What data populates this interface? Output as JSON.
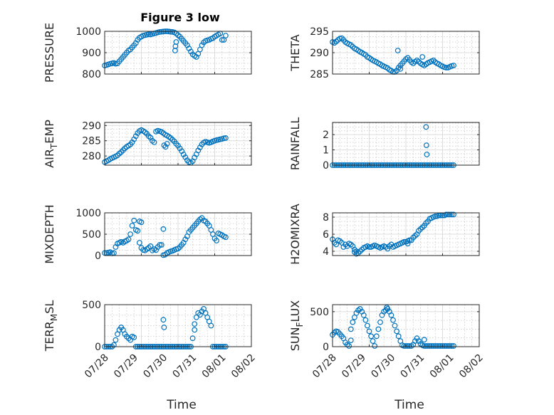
{
  "figure": {
    "title": "Figure 3 low",
    "xlabel": "Time"
  },
  "colors": {
    "marker": "#0072bd",
    "axis": "#262626",
    "grid": "#dcdcdc",
    "background": "#ffffff"
  },
  "chart_data": [
    {
      "type": "scatter",
      "ylabel": "PRESSURE",
      "xlim": [
        0,
        4
      ],
      "ylim": [
        800,
        1000
      ],
      "yticks": [
        "800",
        "900",
        "1000"
      ],
      "xticks": [],
      "grid": "on",
      "x": [
        0.0,
        0.05,
        0.1,
        0.15,
        0.2,
        0.25,
        0.3,
        0.35,
        0.4,
        0.45,
        0.5,
        0.55,
        0.6,
        0.65,
        0.7,
        0.75,
        0.8,
        0.85,
        0.9,
        0.95,
        1.0,
        1.05,
        1.1,
        1.15,
        1.2,
        1.25,
        1.3,
        1.35,
        1.4,
        1.45,
        1.5,
        1.55,
        1.6,
        1.65,
        1.7,
        1.75,
        1.8,
        1.85,
        1.9,
        1.95,
        2.0,
        2.05,
        2.1,
        2.15,
        2.2,
        2.25,
        2.3,
        2.35,
        2.4,
        2.45,
        2.5,
        2.55,
        2.6,
        2.65,
        2.7,
        2.75,
        2.8,
        2.85,
        2.9,
        2.95,
        3.0,
        3.05,
        3.1,
        3.15,
        3.2,
        3.25,
        3.3,
        1.92,
        1.93,
        1.95
      ],
      "y": [
        840,
        842,
        845,
        848,
        850,
        852,
        848,
        850,
        860,
        870,
        880,
        890,
        900,
        910,
        915,
        925,
        935,
        945,
        960,
        970,
        975,
        980,
        982,
        984,
        986,
        985,
        988,
        990,
        992,
        995,
        997,
        998,
        999,
        1000,
        1000,
        999,
        998,
        997,
        995,
        990,
        982,
        975,
        965,
        955,
        945,
        935,
        920,
        905,
        892,
        885,
        880,
        895,
        915,
        935,
        948,
        955,
        958,
        960,
        965,
        968,
        975,
        980,
        985,
        990,
        960,
        960,
        980,
        910,
        930,
        950
      ]
    },
    {
      "type": "scatter",
      "ylabel": "THETA",
      "xlim": [
        0,
        4
      ],
      "ylim": [
        285,
        295
      ],
      "yticks": [
        "285",
        "290",
        "295"
      ],
      "xticks": [],
      "grid": "on",
      "x": [
        0.0,
        0.05,
        0.1,
        0.15,
        0.2,
        0.25,
        0.3,
        0.35,
        0.4,
        0.45,
        0.5,
        0.55,
        0.6,
        0.65,
        0.7,
        0.75,
        0.8,
        0.85,
        0.9,
        0.95,
        1.0,
        1.05,
        1.1,
        1.15,
        1.2,
        1.25,
        1.3,
        1.35,
        1.4,
        1.45,
        1.5,
        1.55,
        1.6,
        1.65,
        1.7,
        1.75,
        1.8,
        1.85,
        1.9,
        1.95,
        2.0,
        2.05,
        2.1,
        2.15,
        2.2,
        2.25,
        2.3,
        2.35,
        2.4,
        2.45,
        2.5,
        2.55,
        2.6,
        2.65,
        2.7,
        2.75,
        2.8,
        2.85,
        2.9,
        2.95,
        3.0,
        3.05,
        3.1,
        3.15,
        3.2,
        3.25,
        3.3,
        1.78,
        1.85,
        2.45
      ],
      "y": [
        292.5,
        292.3,
        292.6,
        293.0,
        293.3,
        293.4,
        293.0,
        292.5,
        292.2,
        292.0,
        291.8,
        291.4,
        291.0,
        290.8,
        290.5,
        290.2,
        290.0,
        289.7,
        289.5,
        289.0,
        288.8,
        288.5,
        288.2,
        288.0,
        287.8,
        287.5,
        287.3,
        287.0,
        286.8,
        286.6,
        286.4,
        286.0,
        285.8,
        285.5,
        285.5,
        285.8,
        286.5,
        287.0,
        287.5,
        288.0,
        288.5,
        288.8,
        288.3,
        287.8,
        287.5,
        287.9,
        288.2,
        287.9,
        287.5,
        287.2,
        287.0,
        287.3,
        287.6,
        287.8,
        288.0,
        288.2,
        287.8,
        287.5,
        287.3,
        287.0,
        286.8,
        286.6,
        286.5,
        286.5,
        286.7,
        286.9,
        287.0,
        290.5,
        286.2,
        289.0
      ]
    },
    {
      "type": "scatter",
      "ylabel": "AIR_TEMP",
      "xlim": [
        0,
        4
      ],
      "ylim": [
        277,
        291
      ],
      "yticks": [
        "280",
        "285",
        "290"
      ],
      "xticks": [],
      "grid": "on",
      "x": [
        0.0,
        0.05,
        0.1,
        0.15,
        0.2,
        0.25,
        0.3,
        0.35,
        0.4,
        0.45,
        0.5,
        0.55,
        0.6,
        0.65,
        0.7,
        0.75,
        0.8,
        0.85,
        0.9,
        0.95,
        1.0,
        1.05,
        1.1,
        1.15,
        1.2,
        1.25,
        1.3,
        1.35,
        1.4,
        1.45,
        1.5,
        1.55,
        1.6,
        1.65,
        1.7,
        1.75,
        1.8,
        1.85,
        1.9,
        1.95,
        2.0,
        2.05,
        2.1,
        2.15,
        2.2,
        2.25,
        2.3,
        2.35,
        2.4,
        2.45,
        2.5,
        2.55,
        2.6,
        2.65,
        2.7,
        2.75,
        2.8,
        2.85,
        2.9,
        2.95,
        3.0,
        3.05,
        3.1,
        3.15,
        3.2,
        3.25,
        3.3,
        1.62,
        1.66,
        1.7
      ],
      "y": [
        278.0,
        278.3,
        278.6,
        279.0,
        279.3,
        279.6,
        279.9,
        280.2,
        280.8,
        281.3,
        281.9,
        282.5,
        283.0,
        283.4,
        283.8,
        284.5,
        285.5,
        286.5,
        287.5,
        288.2,
        288.5,
        288.2,
        287.8,
        287.3,
        286.5,
        286.0,
        285.0,
        284.5,
        288.0,
        288.3,
        288.1,
        287.9,
        287.5,
        287.0,
        286.7,
        286.3,
        285.9,
        285.3,
        284.8,
        284.0,
        283.4,
        282.5,
        281.6,
        280.5,
        279.6,
        278.6,
        278.0,
        277.8,
        278.3,
        279.5,
        280.6,
        281.8,
        282.8,
        283.8,
        284.4,
        284.7,
        284.5,
        284.3,
        284.5,
        284.8,
        285.0,
        285.2,
        285.3,
        285.5,
        285.6,
        285.8,
        285.9,
        283.5,
        283.0,
        284.0
      ]
    },
    {
      "type": "scatter",
      "ylabel": "RAINFALL",
      "xlim": [
        0,
        4
      ],
      "ylim": [
        0,
        2.8
      ],
      "yticks": [
        "0",
        "1",
        "2"
      ],
      "xticks": [],
      "grid": "on",
      "x": [
        0.0,
        0.05,
        0.1,
        0.15,
        0.2,
        0.25,
        0.3,
        0.35,
        0.4,
        0.45,
        0.5,
        0.55,
        0.6,
        0.65,
        0.7,
        0.75,
        0.8,
        0.85,
        0.9,
        0.95,
        1.0,
        1.05,
        1.1,
        1.15,
        1.2,
        1.25,
        1.3,
        1.35,
        1.4,
        1.45,
        1.5,
        1.55,
        1.6,
        1.65,
        1.7,
        1.75,
        1.8,
        1.85,
        1.9,
        1.95,
        2.0,
        2.05,
        2.1,
        2.15,
        2.2,
        2.25,
        2.3,
        2.35,
        2.4,
        2.45,
        2.5,
        2.55,
        2.6,
        2.65,
        2.7,
        2.75,
        2.8,
        2.85,
        2.9,
        2.95,
        3.0,
        3.05,
        3.1,
        3.15,
        3.2,
        3.25,
        3.3,
        2.55,
        2.56,
        2.57
      ],
      "y": [
        0,
        0,
        0,
        0,
        0,
        0,
        0,
        0,
        0,
        0,
        0,
        0,
        0,
        0,
        0,
        0,
        0,
        0,
        0,
        0,
        0,
        0,
        0,
        0,
        0,
        0,
        0,
        0,
        0,
        0,
        0,
        0,
        0,
        0,
        0,
        0,
        0,
        0,
        0,
        0,
        0,
        0,
        0,
        0,
        0,
        0,
        0,
        0,
        0,
        0,
        0,
        0,
        0,
        0,
        0,
        0,
        0,
        0,
        0,
        0,
        0,
        0,
        0,
        0,
        0,
        0,
        0,
        2.5,
        1.3,
        0.7
      ]
    },
    {
      "type": "scatter",
      "ylabel": "MIXDEPTH",
      "xlim": [
        0,
        4
      ],
      "ylim": [
        0,
        1000
      ],
      "yticks": [
        "0",
        "500",
        "1000"
      ],
      "xticks": [],
      "grid": "on",
      "x": [
        0.0,
        0.05,
        0.1,
        0.15,
        0.2,
        0.25,
        0.3,
        0.35,
        0.4,
        0.45,
        0.5,
        0.55,
        0.6,
        0.65,
        0.7,
        0.75,
        0.8,
        0.85,
        0.9,
        0.95,
        1.0,
        1.05,
        1.1,
        1.15,
        1.2,
        1.25,
        1.3,
        1.35,
        1.4,
        1.45,
        1.5,
        1.55,
        1.6,
        1.65,
        1.7,
        1.75,
        1.8,
        1.85,
        1.9,
        1.95,
        2.0,
        2.05,
        2.1,
        2.15,
        2.2,
        2.25,
        2.3,
        2.35,
        2.4,
        2.45,
        2.5,
        2.55,
        2.6,
        2.65,
        2.7,
        2.75,
        2.8,
        2.85,
        2.9,
        2.95,
        3.0,
        3.05,
        3.1,
        3.15,
        3.2,
        3.25,
        3.3,
        0.95,
        1.0,
        1.6
      ],
      "y": [
        60,
        60,
        70,
        80,
        50,
        60,
        200,
        280,
        300,
        320,
        300,
        330,
        350,
        380,
        500,
        700,
        820,
        600,
        580,
        300,
        180,
        130,
        120,
        150,
        180,
        220,
        120,
        150,
        130,
        200,
        250,
        250,
        10,
        20,
        60,
        80,
        100,
        110,
        130,
        150,
        160,
        200,
        250,
        300,
        380,
        450,
        550,
        600,
        650,
        700,
        750,
        800,
        850,
        880,
        820,
        800,
        750,
        700,
        600,
        500,
        400,
        350,
        520,
        500,
        480,
        450,
        430,
        800,
        780,
        620
      ]
    },
    {
      "type": "scatter",
      "ylabel": "H2OMIXRA",
      "xlim": [
        0,
        4
      ],
      "ylim": [
        3.5,
        8.5
      ],
      "yticks": [
        "4",
        "6",
        "8"
      ],
      "xticks": [],
      "grid": "on",
      "x": [
        0.0,
        0.05,
        0.1,
        0.15,
        0.2,
        0.25,
        0.3,
        0.35,
        0.4,
        0.45,
        0.5,
        0.55,
        0.6,
        0.65,
        0.7,
        0.75,
        0.8,
        0.85,
        0.9,
        0.95,
        1.0,
        1.05,
        1.1,
        1.15,
        1.2,
        1.25,
        1.3,
        1.35,
        1.4,
        1.45,
        1.5,
        1.55,
        1.6,
        1.65,
        1.7,
        1.75,
        1.8,
        1.85,
        1.9,
        1.95,
        2.0,
        2.05,
        2.1,
        2.15,
        2.2,
        2.25,
        2.3,
        2.35,
        2.4,
        2.45,
        2.5,
        2.55,
        2.6,
        2.65,
        2.7,
        2.75,
        2.8,
        2.85,
        2.9,
        2.95,
        3.0,
        3.05,
        3.1,
        3.15,
        3.2,
        3.25,
        3.3,
        0.6,
        0.65,
        2.05
      ],
      "y": [
        5.4,
        5.0,
        4.8,
        5.3,
        5.2,
        5.0,
        4.5,
        4.8,
        4.6,
        4.9,
        4.8,
        4.6,
        3.9,
        3.7,
        3.8,
        4.0,
        4.2,
        4.4,
        4.5,
        4.6,
        4.5,
        4.5,
        4.6,
        4.7,
        4.6,
        4.5,
        4.4,
        4.5,
        4.6,
        4.5,
        4.3,
        4.6,
        4.8,
        4.5,
        4.6,
        4.7,
        4.8,
        4.9,
        5.0,
        5.1,
        5.1,
        5.2,
        5.3,
        5.3,
        5.6,
        5.8,
        6.0,
        6.4,
        6.6,
        6.8,
        7.0,
        7.3,
        7.5,
        7.8,
        7.9,
        8.0,
        8.1,
        8.1,
        8.2,
        8.2,
        8.2,
        8.2,
        8.3,
        8.3,
        8.3,
        8.3,
        8.3,
        4.2,
        4.0,
        4.9
      ]
    },
    {
      "type": "scatter",
      "ylabel": "TERR_MSL",
      "xlim": [
        0,
        4
      ],
      "ylim": [
        0,
        500
      ],
      "yticks": [
        "0",
        "500"
      ],
      "xticks": [
        "07/28",
        "07/29",
        "07/30",
        "07/31",
        "08/01",
        "08/02"
      ],
      "grid": "on",
      "x": [
        0.0,
        0.05,
        0.1,
        0.15,
        0.2,
        0.25,
        0.3,
        0.35,
        0.4,
        0.45,
        0.5,
        0.55,
        0.6,
        0.65,
        0.7,
        0.75,
        0.8,
        0.85,
        0.9,
        0.95,
        1.0,
        1.05,
        1.1,
        1.15,
        1.2,
        1.25,
        1.3,
        1.35,
        1.4,
        1.45,
        1.5,
        1.55,
        1.6,
        1.65,
        1.7,
        1.75,
        1.8,
        1.85,
        1.9,
        1.95,
        2.0,
        2.05,
        2.1,
        2.15,
        2.2,
        2.25,
        2.3,
        2.35,
        2.4,
        2.45,
        2.5,
        2.55,
        2.6,
        2.65,
        2.7,
        2.75,
        2.8,
        2.85,
        2.9,
        2.95,
        3.0,
        3.05,
        3.1,
        3.15,
        3.2,
        3.25,
        3.3,
        1.6,
        1.62,
        2.45
      ],
      "y": [
        0,
        0,
        0,
        0,
        0,
        20,
        80,
        150,
        200,
        230,
        200,
        150,
        120,
        100,
        80,
        120,
        110,
        0,
        0,
        0,
        0,
        0,
        0,
        0,
        0,
        0,
        0,
        0,
        0,
        0,
        0,
        0,
        0,
        0,
        0,
        0,
        0,
        0,
        0,
        0,
        0,
        0,
        0,
        0,
        0,
        0,
        0,
        0,
        100,
        200,
        350,
        400,
        380,
        420,
        450,
        400,
        350,
        300,
        250,
        0,
        0,
        0,
        0,
        0,
        0,
        0,
        0,
        320,
        230,
        270
      ]
    },
    {
      "type": "scatter",
      "ylabel": "SUN_FLUX",
      "xlim": [
        0,
        4
      ],
      "ylim": [
        0,
        600
      ],
      "yticks": [
        "0",
        "500"
      ],
      "xticks": [
        "07/28",
        "07/29",
        "07/30",
        "07/31",
        "08/01",
        "08/02"
      ],
      "grid": "on",
      "x": [
        0.0,
        0.05,
        0.1,
        0.15,
        0.2,
        0.25,
        0.3,
        0.35,
        0.4,
        0.45,
        0.5,
        0.55,
        0.6,
        0.65,
        0.7,
        0.75,
        0.8,
        0.85,
        0.9,
        0.95,
        1.0,
        1.05,
        1.1,
        1.15,
        1.2,
        1.25,
        1.3,
        1.35,
        1.4,
        1.45,
        1.5,
        1.55,
        1.6,
        1.65,
        1.7,
        1.75,
        1.8,
        1.85,
        1.9,
        1.95,
        2.0,
        2.05,
        2.1,
        2.15,
        2.2,
        2.25,
        2.3,
        2.35,
        2.4,
        2.45,
        2.5,
        2.55,
        2.6,
        2.65,
        2.7,
        2.75,
        2.8,
        2.85,
        2.9,
        2.95,
        3.0,
        3.05,
        3.1,
        3.15,
        3.2,
        3.25,
        3.3,
        0.5,
        1.48,
        2.5
      ],
      "y": [
        170,
        200,
        220,
        210,
        180,
        150,
        120,
        60,
        30,
        10,
        250,
        350,
        420,
        480,
        520,
        540,
        500,
        450,
        380,
        300,
        220,
        150,
        80,
        10,
        150,
        250,
        350,
        450,
        500,
        520,
        540,
        500,
        450,
        380,
        300,
        220,
        150,
        80,
        20,
        10,
        10,
        10,
        10,
        10,
        30,
        80,
        120,
        80,
        40,
        20,
        10,
        10,
        10,
        10,
        10,
        10,
        10,
        10,
        10,
        10,
        10,
        10,
        10,
        10,
        10,
        10,
        10,
        90,
        560,
        100
      ]
    }
  ]
}
